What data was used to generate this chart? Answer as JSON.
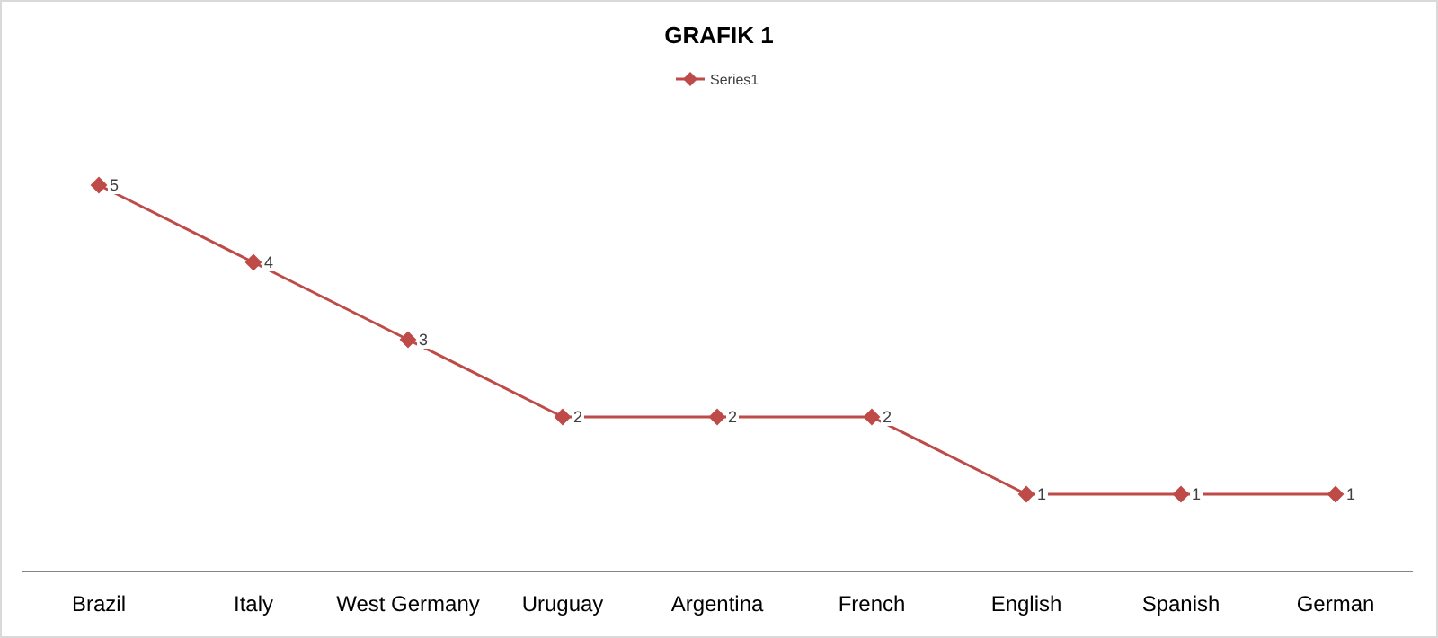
{
  "chart_data": {
    "type": "line",
    "title": "GRAFIK 1",
    "categories": [
      "Brazil",
      "Italy",
      "West Germany",
      "Uruguay",
      "Argentina",
      "French",
      "English",
      "Spanish",
      "German"
    ],
    "series": [
      {
        "name": "Series1",
        "color": "#be4b48",
        "values": [
          5,
          4,
          3,
          2,
          2,
          2,
          1,
          1,
          1
        ]
      }
    ],
    "data_labels": true,
    "legend": "top",
    "marker": "diamond",
    "line_style": "solid"
  }
}
